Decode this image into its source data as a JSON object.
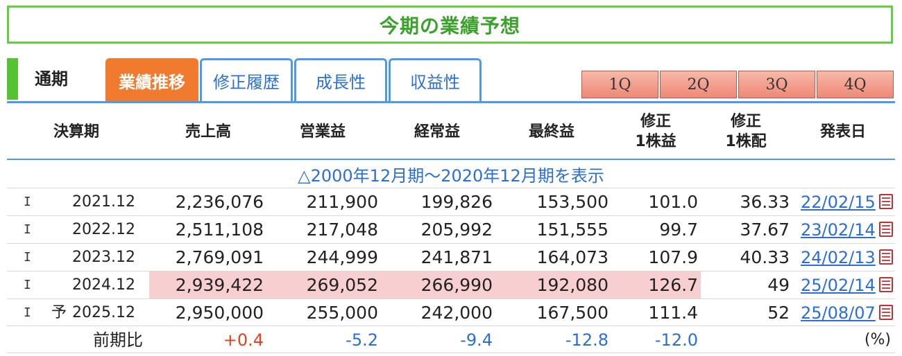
{
  "title": "今期の業績予想",
  "tabs": {
    "period_label": "通期",
    "items": [
      {
        "label": "業績推移",
        "active": true
      },
      {
        "label": "修正履歴",
        "active": false
      },
      {
        "label": "成長性",
        "active": false
      },
      {
        "label": "収益性",
        "active": false
      }
    ]
  },
  "quarters": [
    "1Q",
    "2Q",
    "3Q",
    "4Q"
  ],
  "headers": {
    "period": "決算期",
    "sales": "売上高",
    "operating": "営業益",
    "ordinary": "経常益",
    "net": "最終益",
    "eps_line1": "修正",
    "eps_line2": "1株益",
    "dps_line1": "修正",
    "dps_line2": "1株配",
    "date": "発表日"
  },
  "show_range": "△2000年12月期～2020年12月期を表示",
  "rows": [
    {
      "ind": "I",
      "mark": "",
      "period": "2021.12",
      "sales": "2,236,076",
      "operating": "211,900",
      "ordinary": "199,826",
      "net": "153,500",
      "eps": "101.0",
      "dps": "36.33",
      "date": "22/02/15"
    },
    {
      "ind": "I",
      "mark": "",
      "period": "2022.12",
      "sales": "2,511,108",
      "operating": "217,048",
      "ordinary": "205,992",
      "net": "151,555",
      "eps": "99.7",
      "dps": "37.67",
      "date": "23/02/14"
    },
    {
      "ind": "I",
      "mark": "",
      "period": "2023.12",
      "sales": "2,769,091",
      "operating": "244,999",
      "ordinary": "241,871",
      "net": "164,073",
      "eps": "107.9",
      "dps": "40.33",
      "date": "24/02/13"
    },
    {
      "ind": "I",
      "mark": "",
      "period": "2024.12",
      "sales": "2,939,422",
      "operating": "269,052",
      "ordinary": "266,990",
      "net": "192,080",
      "eps": "126.7",
      "dps": "49",
      "date": "25/02/14"
    },
    {
      "ind": "I",
      "mark": "予",
      "period": "2025.12",
      "sales": "2,950,000",
      "operating": "255,000",
      "ordinary": "242,000",
      "net": "167,500",
      "eps": "111.4",
      "dps": "52",
      "date": "25/08/07"
    }
  ],
  "comparison": {
    "label": "前期比",
    "sales": "+0.4",
    "operating": "-5.2",
    "ordinary": "-9.4",
    "net": "-12.8",
    "eps": "-12.0",
    "unit": "(%)"
  },
  "colors": {
    "title_green": "#3aa12a",
    "tab_active": "#f07a2e",
    "link_blue": "#2a6fd8",
    "highlight_row": "#f7cfd0",
    "positive": "#e8401c"
  }
}
